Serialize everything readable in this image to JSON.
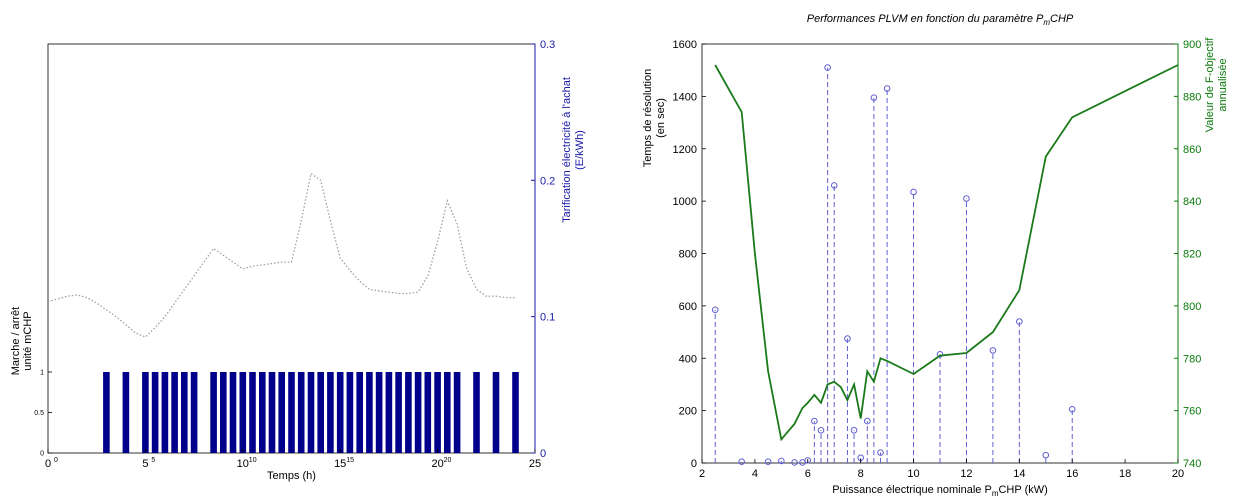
{
  "chart_data": [
    {
      "type": "line",
      "panel": "left-upper",
      "xlabel": "Temps (h)",
      "xlim": [
        0,
        25
      ],
      "x_ticks": [
        "0",
        "5",
        "10",
        "15",
        "20",
        "25"
      ],
      "x_ticks_small": [
        "0",
        "5",
        "10",
        "15",
        "20"
      ],
      "ylabel_right": "Tarification électricité à l'achat (E/kWh)",
      "ylabel_right_lines": [
        "Tarification électricité à l'achat",
        "(E/kWh)"
      ],
      "ylim_right": [
        0,
        0.3
      ],
      "y_ticks_right": [
        "0",
        "0.1",
        "0.2",
        "0.3"
      ],
      "series": [
        {
          "style": "dotted",
          "color": "#a0a0a0",
          "x": [
            0,
            0.5,
            1,
            1.5,
            2,
            2.5,
            3,
            3.5,
            4,
            4.5,
            5,
            5.5,
            6,
            6.5,
            7,
            7.5,
            8,
            8.5,
            9,
            9.5,
            10,
            10.5,
            11,
            11.5,
            12,
            12.5,
            13,
            13.5,
            14,
            14.5,
            15,
            15.5,
            16,
            16.5,
            17,
            17.5,
            18,
            18.5,
            19,
            19.5,
            20,
            20.5,
            21,
            21.5,
            22,
            22.5,
            23,
            23.5,
            24
          ],
          "y": [
            0.111,
            0.113,
            0.115,
            0.116,
            0.114,
            0.11,
            0.105,
            0.1,
            0.094,
            0.088,
            0.085,
            0.092,
            0.1,
            0.11,
            0.12,
            0.13,
            0.14,
            0.15,
            0.145,
            0.14,
            0.135,
            0.137,
            0.138,
            0.139,
            0.14,
            0.14,
            0.17,
            0.205,
            0.2,
            0.17,
            0.143,
            0.134,
            0.126,
            0.12,
            0.119,
            0.118,
            0.117,
            0.117,
            0.118,
            0.13,
            0.155,
            0.185,
            0.168,
            0.135,
            0.12,
            0.115,
            0.115,
            0.114,
            0.114
          ]
        }
      ],
      "ylabel_left_lines": [
        "Marche / arrêt",
        "unité mCHP"
      ]
    },
    {
      "type": "bar",
      "panel": "left-lower",
      "xlim": [
        0,
        25
      ],
      "ylim": [
        0,
        1
      ],
      "y_ticks": [
        "0",
        "0.5",
        "1"
      ],
      "bar_color": "#00008b",
      "on_hours": [
        3,
        4,
        5,
        5.5,
        6,
        6.5,
        7,
        7.5,
        8.5,
        9,
        9.5,
        10,
        10.5,
        11,
        11.5,
        12,
        12.5,
        13,
        13.5,
        14,
        14.5,
        15,
        15.5,
        16,
        16.5,
        17,
        17.5,
        18,
        18.5,
        19,
        19.5,
        20,
        20.5,
        21,
        22,
        23,
        24
      ],
      "bar_width_hours": 0.34
    },
    {
      "type": "line",
      "panel": "right",
      "title": "Performances PLVM en fonction du paramètre P",
      "title_sub": "m",
      "title_suffix": "CHP",
      "xlabel": "Puissance électrique nominale P",
      "xlabel_sub": "m",
      "xlabel_suffix": "CHP (kW)",
      "xlim": [
        2,
        20
      ],
      "x_ticks": [
        "2",
        "4",
        "6",
        "8",
        "10",
        "12",
        "14",
        "16",
        "18",
        "20"
      ],
      "ylabel_left_lines": [
        "Temps de résolution",
        "(en sec)"
      ],
      "ylim_left": [
        0,
        1600
      ],
      "y_ticks_left": [
        "0",
        "200",
        "400",
        "600",
        "800",
        "1000",
        "1200",
        "1400",
        "1600"
      ],
      "ylabel_right_lines": [
        "Valeur de F-objectif",
        "annualisée"
      ],
      "ylim_right": [
        740,
        900
      ],
      "y_ticks_right": [
        "740",
        "760",
        "780",
        "800",
        "820",
        "840",
        "860",
        "880",
        "900"
      ],
      "series": [
        {
          "style": "stem",
          "color": "#6060d0",
          "axis": "left",
          "x": [
            2.5,
            3.5,
            4.5,
            5,
            5.5,
            5.8,
            6,
            6.25,
            6.5,
            6.75,
            7,
            7.5,
            7.75,
            8,
            8.25,
            8.5,
            8.75,
            9,
            10,
            11,
            12,
            13,
            14,
            15,
            16
          ],
          "y": [
            585,
            5,
            5,
            8,
            2,
            2,
            10,
            160,
            125,
            1510,
            1060,
            475,
            125,
            20,
            160,
            1395,
            40,
            1430,
            1035,
            415,
            1010,
            430,
            540,
            30,
            205
          ]
        },
        {
          "style": "solid",
          "color": "#1a7a1a",
          "axis": "right",
          "x": [
            2.5,
            3.5,
            4,
            4.5,
            5,
            5.5,
            5.8,
            6,
            6.25,
            6.5,
            6.75,
            7,
            7.25,
            7.5,
            7.75,
            8,
            8.25,
            8.5,
            8.75,
            9,
            10,
            11,
            12,
            13,
            14,
            15,
            16,
            20
          ],
          "y": [
            892,
            874,
            820,
            775,
            749,
            755,
            761,
            763,
            766,
            763,
            770,
            771,
            769,
            764,
            770,
            757,
            775,
            771,
            780,
            779,
            774,
            781,
            782,
            790,
            806,
            857,
            872,
            892
          ]
        }
      ]
    }
  ]
}
